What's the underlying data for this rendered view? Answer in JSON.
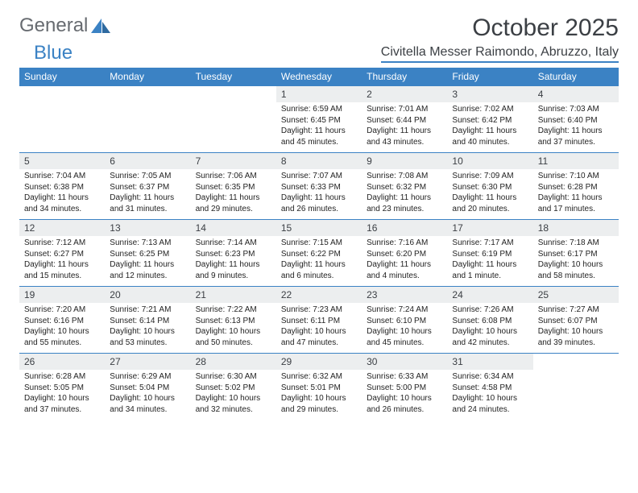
{
  "logo": {
    "text1": "General",
    "text2": "Blue"
  },
  "title": "October 2025",
  "location": "Civitella Messer Raimondo, Abruzzo, Italy",
  "colors": {
    "header_bg": "#3b82c4",
    "header_text": "#ffffff",
    "daynum_bg": "#eceeef",
    "border": "#3b82c4",
    "text": "#232323",
    "title_text": "#3b3f44"
  },
  "fonts": {
    "title_size": 30,
    "location_size": 16,
    "day_header_size": 12,
    "daynum_size": 12,
    "info_size": 10
  },
  "day_headers": [
    "Sunday",
    "Monday",
    "Tuesday",
    "Wednesday",
    "Thursday",
    "Friday",
    "Saturday"
  ],
  "weeks": [
    {
      "nums": [
        "",
        "",
        "",
        "1",
        "2",
        "3",
        "4"
      ],
      "sunrise": [
        "",
        "",
        "",
        "Sunrise: 6:59 AM",
        "Sunrise: 7:01 AM",
        "Sunrise: 7:02 AM",
        "Sunrise: 7:03 AM"
      ],
      "sunset": [
        "",
        "",
        "",
        "Sunset: 6:45 PM",
        "Sunset: 6:44 PM",
        "Sunset: 6:42 PM",
        "Sunset: 6:40 PM"
      ],
      "day1": [
        "",
        "",
        "",
        "Daylight: 11 hours",
        "Daylight: 11 hours",
        "Daylight: 11 hours",
        "Daylight: 11 hours"
      ],
      "day2": [
        "",
        "",
        "",
        "and 45 minutes.",
        "and 43 minutes.",
        "and 40 minutes.",
        "and 37 minutes."
      ]
    },
    {
      "nums": [
        "5",
        "6",
        "7",
        "8",
        "9",
        "10",
        "11"
      ],
      "sunrise": [
        "Sunrise: 7:04 AM",
        "Sunrise: 7:05 AM",
        "Sunrise: 7:06 AM",
        "Sunrise: 7:07 AM",
        "Sunrise: 7:08 AM",
        "Sunrise: 7:09 AM",
        "Sunrise: 7:10 AM"
      ],
      "sunset": [
        "Sunset: 6:38 PM",
        "Sunset: 6:37 PM",
        "Sunset: 6:35 PM",
        "Sunset: 6:33 PM",
        "Sunset: 6:32 PM",
        "Sunset: 6:30 PM",
        "Sunset: 6:28 PM"
      ],
      "day1": [
        "Daylight: 11 hours",
        "Daylight: 11 hours",
        "Daylight: 11 hours",
        "Daylight: 11 hours",
        "Daylight: 11 hours",
        "Daylight: 11 hours",
        "Daylight: 11 hours"
      ],
      "day2": [
        "and 34 minutes.",
        "and 31 minutes.",
        "and 29 minutes.",
        "and 26 minutes.",
        "and 23 minutes.",
        "and 20 minutes.",
        "and 17 minutes."
      ]
    },
    {
      "nums": [
        "12",
        "13",
        "14",
        "15",
        "16",
        "17",
        "18"
      ],
      "sunrise": [
        "Sunrise: 7:12 AM",
        "Sunrise: 7:13 AM",
        "Sunrise: 7:14 AM",
        "Sunrise: 7:15 AM",
        "Sunrise: 7:16 AM",
        "Sunrise: 7:17 AM",
        "Sunrise: 7:18 AM"
      ],
      "sunset": [
        "Sunset: 6:27 PM",
        "Sunset: 6:25 PM",
        "Sunset: 6:23 PM",
        "Sunset: 6:22 PM",
        "Sunset: 6:20 PM",
        "Sunset: 6:19 PM",
        "Sunset: 6:17 PM"
      ],
      "day1": [
        "Daylight: 11 hours",
        "Daylight: 11 hours",
        "Daylight: 11 hours",
        "Daylight: 11 hours",
        "Daylight: 11 hours",
        "Daylight: 11 hours",
        "Daylight: 10 hours"
      ],
      "day2": [
        "and 15 minutes.",
        "and 12 minutes.",
        "and 9 minutes.",
        "and 6 minutes.",
        "and 4 minutes.",
        "and 1 minute.",
        "and 58 minutes."
      ]
    },
    {
      "nums": [
        "19",
        "20",
        "21",
        "22",
        "23",
        "24",
        "25"
      ],
      "sunrise": [
        "Sunrise: 7:20 AM",
        "Sunrise: 7:21 AM",
        "Sunrise: 7:22 AM",
        "Sunrise: 7:23 AM",
        "Sunrise: 7:24 AM",
        "Sunrise: 7:26 AM",
        "Sunrise: 7:27 AM"
      ],
      "sunset": [
        "Sunset: 6:16 PM",
        "Sunset: 6:14 PM",
        "Sunset: 6:13 PM",
        "Sunset: 6:11 PM",
        "Sunset: 6:10 PM",
        "Sunset: 6:08 PM",
        "Sunset: 6:07 PM"
      ],
      "day1": [
        "Daylight: 10 hours",
        "Daylight: 10 hours",
        "Daylight: 10 hours",
        "Daylight: 10 hours",
        "Daylight: 10 hours",
        "Daylight: 10 hours",
        "Daylight: 10 hours"
      ],
      "day2": [
        "and 55 minutes.",
        "and 53 minutes.",
        "and 50 minutes.",
        "and 47 minutes.",
        "and 45 minutes.",
        "and 42 minutes.",
        "and 39 minutes."
      ]
    },
    {
      "nums": [
        "26",
        "27",
        "28",
        "29",
        "30",
        "31",
        ""
      ],
      "sunrise": [
        "Sunrise: 6:28 AM",
        "Sunrise: 6:29 AM",
        "Sunrise: 6:30 AM",
        "Sunrise: 6:32 AM",
        "Sunrise: 6:33 AM",
        "Sunrise: 6:34 AM",
        ""
      ],
      "sunset": [
        "Sunset: 5:05 PM",
        "Sunset: 5:04 PM",
        "Sunset: 5:02 PM",
        "Sunset: 5:01 PM",
        "Sunset: 5:00 PM",
        "Sunset: 4:58 PM",
        ""
      ],
      "day1": [
        "Daylight: 10 hours",
        "Daylight: 10 hours",
        "Daylight: 10 hours",
        "Daylight: 10 hours",
        "Daylight: 10 hours",
        "Daylight: 10 hours",
        ""
      ],
      "day2": [
        "and 37 minutes.",
        "and 34 minutes.",
        "and 32 minutes.",
        "and 29 minutes.",
        "and 26 minutes.",
        "and 24 minutes.",
        ""
      ]
    }
  ]
}
